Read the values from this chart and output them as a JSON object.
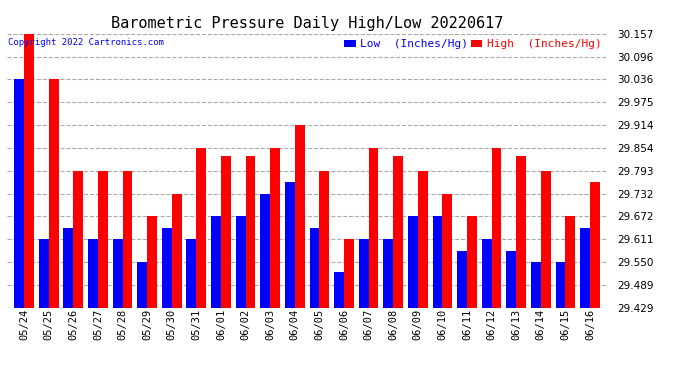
{
  "title": "Barometric Pressure Daily High/Low 20220617",
  "copyright": "Copyright 2022 Cartronics.com",
  "legend_low": "Low  (Inches/Hg)",
  "legend_high": "High  (Inches/Hg)",
  "dates": [
    "05/24",
    "05/25",
    "05/26",
    "05/27",
    "05/28",
    "05/29",
    "05/30",
    "05/31",
    "06/01",
    "06/02",
    "06/03",
    "06/04",
    "06/05",
    "06/06",
    "06/07",
    "06/08",
    "06/09",
    "06/10",
    "06/11",
    "06/12",
    "06/13",
    "06/14",
    "06/15",
    "06/16"
  ],
  "high": [
    30.157,
    30.036,
    29.793,
    29.793,
    29.793,
    29.672,
    29.732,
    29.854,
    29.832,
    29.832,
    29.854,
    29.914,
    29.793,
    29.611,
    29.854,
    29.832,
    29.793,
    29.732,
    29.672,
    29.854,
    29.832,
    29.793,
    29.672,
    29.762
  ],
  "low": [
    30.036,
    29.611,
    29.64,
    29.611,
    29.611,
    29.55,
    29.64,
    29.611,
    29.672,
    29.672,
    29.732,
    29.762,
    29.64,
    29.524,
    29.611,
    29.611,
    29.672,
    29.672,
    29.58,
    29.611,
    29.58,
    29.55,
    29.55,
    29.64
  ],
  "ymin": 29.429,
  "ymax": 30.157,
  "yticks": [
    29.429,
    29.489,
    29.55,
    29.611,
    29.672,
    29.732,
    29.793,
    29.854,
    29.914,
    29.975,
    30.036,
    30.096,
    30.157
  ],
  "bar_width": 0.4,
  "high_color": "#ff0000",
  "low_color": "#0000ff",
  "bg_color": "#ffffff",
  "grid_color": "#aaaaaa",
  "title_fontsize": 11,
  "tick_fontsize": 7.5,
  "legend_fontsize": 8
}
